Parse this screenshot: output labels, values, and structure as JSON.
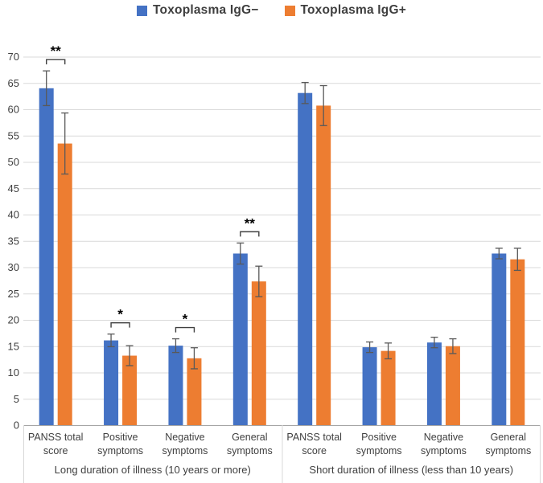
{
  "chart_data": {
    "type": "bar",
    "title": "",
    "xlabel": "",
    "ylabel": "",
    "ylim": [
      0,
      70
    ],
    "ytick_step": 5,
    "grid": true,
    "legend_position": "top",
    "series": [
      {
        "name": "Toxoplasma IgG−",
        "color": "#4472C4",
        "values": [
          64.0,
          16.1,
          15.1,
          32.6,
          63.1,
          14.8,
          15.7,
          32.6
        ],
        "errors": [
          3.3,
          1.2,
          1.3,
          2.0,
          2.0,
          1.0,
          1.0,
          1.0
        ]
      },
      {
        "name": "Toxoplasma IgG+",
        "color": "#ED7D31",
        "values": [
          53.5,
          13.2,
          12.7,
          27.3,
          60.7,
          14.1,
          15.0,
          31.5
        ],
        "errors": [
          5.8,
          1.9,
          2.0,
          2.9,
          3.8,
          1.5,
          1.4,
          2.1
        ]
      }
    ],
    "categories": [
      {
        "label": "PANSS total score",
        "lines": [
          "PANSS total",
          "score"
        ]
      },
      {
        "label": "Positive symptoms",
        "lines": [
          "Positive",
          "symptoms"
        ]
      },
      {
        "label": "Negative symptoms",
        "lines": [
          "Negative",
          "symptoms"
        ]
      },
      {
        "label": "General symptoms",
        "lines": [
          "General",
          "symptoms"
        ]
      },
      {
        "label": "PANSS total score",
        "lines": [
          "PANSS total",
          "score"
        ]
      },
      {
        "label": "Positive symptoms",
        "lines": [
          "Positive",
          "symptoms"
        ]
      },
      {
        "label": "Negative symptoms",
        "lines": [
          "Negative",
          "symptoms"
        ]
      },
      {
        "label": "General symptoms",
        "lines": [
          "General",
          "symptoms"
        ]
      }
    ],
    "group_labels": [
      "Long duration of illness (10 years or more)",
      "Short duration of illness (less than 10 years)"
    ],
    "categories_per_group": 4,
    "significance": [
      {
        "pair_index": 0,
        "label": "**"
      },
      {
        "pair_index": 1,
        "label": "*"
      },
      {
        "pair_index": 2,
        "label": "*"
      },
      {
        "pair_index": 3,
        "label": "**"
      }
    ],
    "colors": {
      "grid": "#D9D9D9",
      "axis_line": "#A6A6A6",
      "error_bar": "#595959",
      "text": "#404040",
      "significance": "#000000"
    }
  }
}
